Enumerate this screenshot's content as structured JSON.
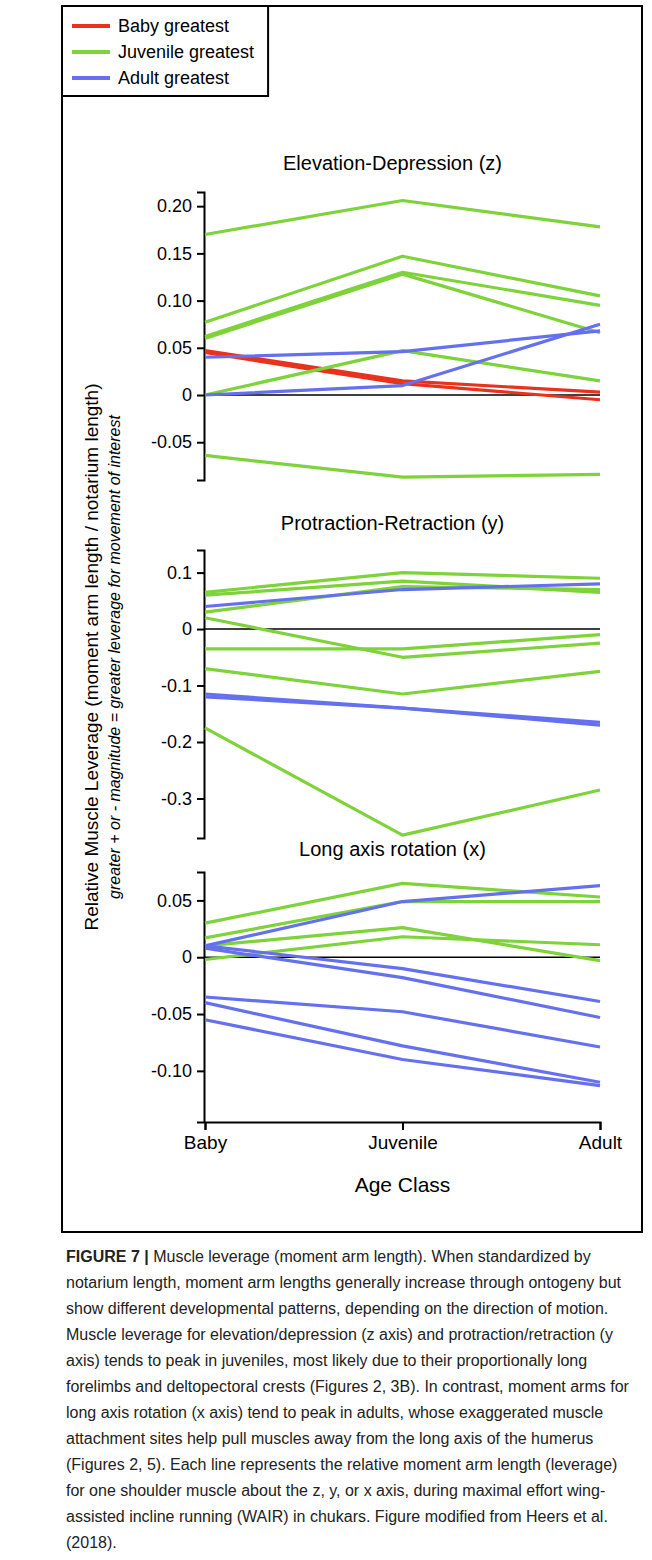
{
  "chart_data": [
    {
      "type": "line",
      "title": "Elevation-Depression (z)",
      "categories": [
        "Baby",
        "Juvenile",
        "Adult"
      ],
      "legend": "top-left",
      "tick_labels": "y",
      "ylim": [
        -0.09,
        0.215
      ],
      "yticks": [
        {
          "value": -0.05,
          "label": "-0.05"
        },
        0,
        0.05,
        {
          "value": 0.1,
          "label": "0.10"
        },
        0.15,
        {
          "value": 0.2,
          "label": "0.20"
        }
      ],
      "series": [
        {
          "name": "Baby greatest",
          "color": "#e8321e",
          "values": [
            0.047,
            0.015,
            0.003
          ]
        },
        {
          "name": "Baby greatest",
          "color": "#e8321e",
          "values": [
            0.045,
            0.012,
            -0.005
          ]
        },
        {
          "name": "Juvenile greatest",
          "color": "#7ed23a",
          "values": [
            0.17,
            0.206,
            0.178
          ]
        },
        {
          "name": "Juvenile greatest",
          "color": "#7ed23a",
          "values": [
            0.077,
            0.147,
            0.105
          ]
        },
        {
          "name": "Juvenile greatest",
          "color": "#7ed23a",
          "values": [
            0.062,
            0.13,
            0.095
          ]
        },
        {
          "name": "Juvenile greatest",
          "color": "#7ed23a",
          "values": [
            0.06,
            0.128,
            0.066
          ]
        },
        {
          "name": "Juvenile greatest",
          "color": "#7ed23a",
          "values": [
            0.0,
            0.047,
            0.015
          ]
        },
        {
          "name": "Juvenile greatest",
          "color": "#7ed23a",
          "values": [
            -0.064,
            -0.087,
            -0.084
          ]
        },
        {
          "name": "Adult greatest",
          "color": "#6470ee",
          "values": [
            0.04,
            0.046,
            0.068
          ]
        },
        {
          "name": "Adult greatest",
          "color": "#6470ee",
          "values": [
            0.0,
            0.01,
            0.075
          ]
        }
      ]
    },
    {
      "type": "line",
      "title": "Protraction-Retraction (y)",
      "categories": [
        "Baby",
        "Juvenile",
        "Adult"
      ],
      "tick_labels": "y",
      "ylim": [
        -0.37,
        0.14
      ],
      "yticks": [
        -0.3,
        -0.2,
        -0.1,
        0,
        0.1
      ],
      "series": [
        {
          "name": "Juvenile greatest",
          "color": "#7ed23a",
          "values": [
            0.065,
            0.1,
            0.09
          ]
        },
        {
          "name": "Juvenile greatest",
          "color": "#7ed23a",
          "values": [
            0.06,
            0.085,
            0.065
          ]
        },
        {
          "name": "Juvenile greatest",
          "color": "#7ed23a",
          "values": [
            0.03,
            0.075,
            0.07
          ]
        },
        {
          "name": "Juvenile greatest",
          "color": "#7ed23a",
          "values": [
            0.02,
            -0.05,
            -0.025
          ]
        },
        {
          "name": "Juvenile greatest",
          "color": "#7ed23a",
          "values": [
            -0.035,
            -0.035,
            -0.01
          ]
        },
        {
          "name": "Juvenile greatest",
          "color": "#7ed23a",
          "values": [
            -0.07,
            -0.115,
            -0.075
          ]
        },
        {
          "name": "Juvenile greatest",
          "color": "#7ed23a",
          "values": [
            -0.175,
            -0.365,
            -0.285
          ]
        },
        {
          "name": "Adult greatest",
          "color": "#6470ee",
          "values": [
            0.04,
            0.07,
            0.08
          ]
        },
        {
          "name": "Adult greatest",
          "color": "#6470ee",
          "values": [
            -0.12,
            -0.14,
            -0.17
          ]
        },
        {
          "name": "Adult greatest",
          "color": "#6470ee",
          "values": [
            -0.115,
            -0.14,
            -0.165
          ]
        }
      ]
    },
    {
      "type": "line",
      "title": "Long axis rotation (x)",
      "categories": [
        "Baby",
        "Juvenile",
        "Adult"
      ],
      "x_label": "Age Class",
      "ylim": [
        -0.145,
        0.075
      ],
      "yticks": [
        {
          "value": -0.1,
          "label": "-0.10"
        },
        -0.05,
        0,
        0.05
      ],
      "series": [
        {
          "name": "Juvenile greatest",
          "color": "#7ed23a",
          "values": [
            0.03,
            0.065,
            0.053
          ]
        },
        {
          "name": "Juvenile greatest",
          "color": "#7ed23a",
          "values": [
            0.017,
            0.049,
            0.049
          ]
        },
        {
          "name": "Juvenile greatest",
          "color": "#7ed23a",
          "values": [
            0.01,
            0.026,
            -0.003
          ]
        },
        {
          "name": "Juvenile greatest",
          "color": "#7ed23a",
          "values": [
            -0.002,
            0.018,
            0.011
          ]
        },
        {
          "name": "Adult greatest",
          "color": "#6470ee",
          "values": [
            0.01,
            0.049,
            0.063
          ]
        },
        {
          "name": "Adult greatest",
          "color": "#6470ee",
          "values": [
            0.01,
            -0.01,
            -0.039
          ]
        },
        {
          "name": "Adult greatest",
          "color": "#6470ee",
          "values": [
            0.008,
            -0.018,
            -0.053
          ]
        },
        {
          "name": "Adult greatest",
          "color": "#6470ee",
          "values": [
            -0.035,
            -0.048,
            -0.079
          ]
        },
        {
          "name": "Adult greatest",
          "color": "#6470ee",
          "values": [
            -0.04,
            -0.078,
            -0.11
          ]
        },
        {
          "name": "Adult greatest",
          "color": "#6470ee",
          "values": [
            -0.055,
            -0.09,
            -0.113
          ]
        }
      ]
    }
  ],
  "y_label": "Relative Muscle Leverage (moment arm length / notarium length)",
  "y_label_note": "greater + or - magnitude = greater leverage for movement of interest",
  "caption_label": "FIGURE 7 |",
  "caption": "Muscle leverage (moment arm length). When standardized by notarium length, moment arm lengths generally increase through ontogeny but show different developmental patterns, depending on the direction of motion. Muscle leverage for elevation/depression (z axis) and protraction/retraction (y axis) tends to peak in juveniles, most likely due to their proportionally long forelimbs and deltopectoral crests (Figures 2, 3B). In contrast, moment arms for long axis rotation (x axis) tend to peak in adults, whose exaggerated muscle attachment sites help pull muscles away from the long axis of the humerus (Figures 2, 5). Each line represents the relative moment arm length (leverage) for one shoulder muscle about the z, y, or x axis, during maximal effort wing-assisted incline running (WAIR) in chukars. Figure modified from Heers et al. (2018)."
}
